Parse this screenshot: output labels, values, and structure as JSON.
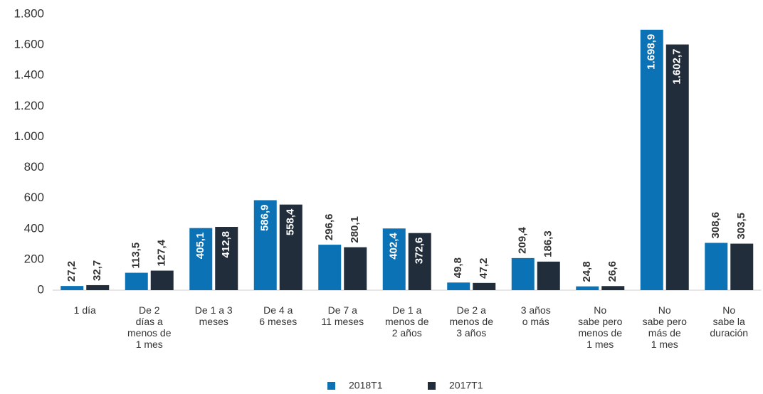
{
  "chart_data": {
    "type": "bar",
    "categories": [
      "1 día",
      "De 2\ndías a\nmenos de\n1 mes",
      "De 1 a 3\nmeses",
      "De 4 a\n6 meses",
      "De 7 a\n11 meses",
      "De 1 a\nmenos de\n2 años",
      "De 2 a\nmenos de\n3 años",
      "3 años\no más",
      "No\nsabe pero\nmenos de\n1 mes",
      "No\nsabe pero\nmás de\n1 mes",
      "No\nsabe la\nduración"
    ],
    "series": [
      {
        "name": "2018T1",
        "color": "#0b72b5",
        "values": [
          27.2,
          113.5,
          405.1,
          586.9,
          296.6,
          402.4,
          49.8,
          209.4,
          24.8,
          1698.9,
          308.6
        ],
        "value_labels": [
          "27,2",
          "113,5",
          "405,1",
          "586,9",
          "296,6",
          "402,4",
          "49,8",
          "209,4",
          "24,8",
          "1.698,9",
          "308,6"
        ]
      },
      {
        "name": "2017T1",
        "color": "#222d3b",
        "values": [
          32.7,
          127.4,
          412.8,
          558.4,
          280.1,
          372.6,
          47.2,
          186.3,
          26.6,
          1602.7,
          303.5
        ],
        "value_labels": [
          "32,7",
          "127,4",
          "412,8",
          "558,4",
          "280,1",
          "372,6",
          "47,2",
          "186,3",
          "26,6",
          "1.602,7",
          "303,5"
        ]
      }
    ],
    "ylim": [
      0,
      1800
    ],
    "yticks": [
      0,
      200,
      400,
      600,
      800,
      {
        "value": 1000,
        "label": "1.000"
      },
      {
        "value": 1200,
        "label": "1.200"
      },
      {
        "value": 1400,
        "label": "1.400"
      },
      {
        "value": 1600,
        "label": "1.600"
      },
      {
        "value": 1800,
        "label": "1.800"
      }
    ],
    "grid": false,
    "legend": "bottom"
  }
}
